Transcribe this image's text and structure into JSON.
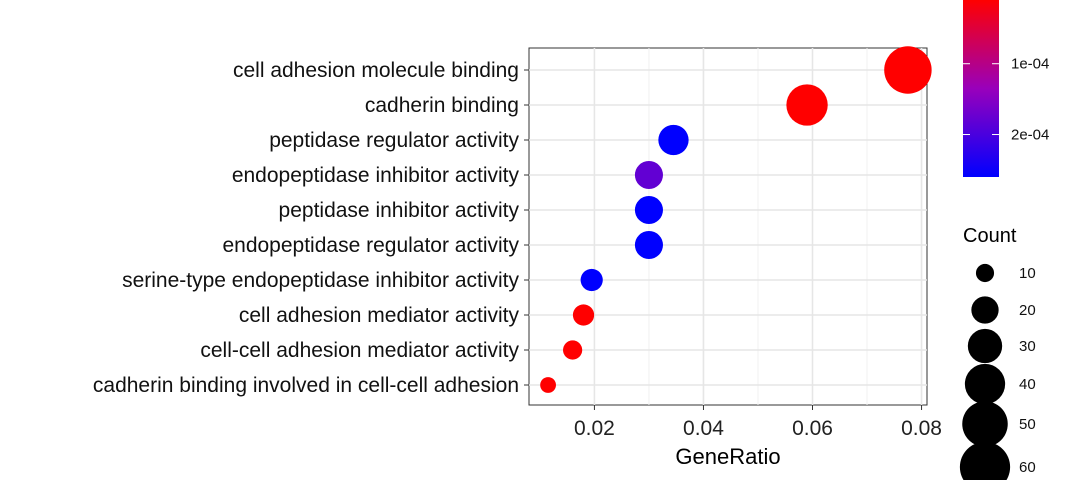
{
  "chart_data": {
    "type": "scatter",
    "title": "",
    "xlabel": "GeneRatio",
    "ylabel": "",
    "xlim": [
      0.008,
      0.081
    ],
    "xticks": [
      0.02,
      0.04,
      0.06,
      0.08
    ],
    "xtick_labels": [
      "0.02",
      "0.04",
      "0.06",
      "0.08"
    ],
    "grid": true,
    "categories": [
      "cell adhesion molecule binding",
      "cadherin binding",
      "peptidase regulator activity",
      "endopeptidase inhibitor activity",
      "peptidase inhibitor activity",
      "endopeptidase regulator activity",
      "serine-type endopeptidase inhibitor activity",
      "cell adhesion mediator activity",
      "cell-cell adhesion mediator activity",
      "cadherin binding involved in cell-cell adhesion"
    ],
    "points": [
      {
        "term": "cell adhesion molecule binding",
        "gene_ratio": 0.0775,
        "count": 54,
        "p_adjust": 1e-05
      },
      {
        "term": "cadherin binding",
        "gene_ratio": 0.059,
        "count": 42,
        "p_adjust": 1e-05
      },
      {
        "term": "peptidase regulator activity",
        "gene_ratio": 0.0345,
        "count": 24,
        "p_adjust": 0.00026
      },
      {
        "term": "endopeptidase inhibitor activity",
        "gene_ratio": 0.03,
        "count": 21,
        "p_adjust": 0.00018
      },
      {
        "term": "peptidase inhibitor activity",
        "gene_ratio": 0.03,
        "count": 21,
        "p_adjust": 0.00026
      },
      {
        "term": "endopeptidase regulator activity",
        "gene_ratio": 0.03,
        "count": 21,
        "p_adjust": 0.00026
      },
      {
        "term": "serine-type endopeptidase inhibitor activity",
        "gene_ratio": 0.0195,
        "count": 14,
        "p_adjust": 0.00026
      },
      {
        "term": "cell adhesion mediator activity",
        "gene_ratio": 0.018,
        "count": 13,
        "p_adjust": 1e-05
      },
      {
        "term": "cell-cell adhesion mediator activity",
        "gene_ratio": 0.016,
        "count": 11,
        "p_adjust": 1e-05
      },
      {
        "term": "cadherin binding involved in cell-cell adhesion",
        "gene_ratio": 0.0115,
        "count": 8,
        "p_adjust": 1e-05
      }
    ],
    "color_legend": {
      "title": "",
      "low_color": "#FF0000",
      "high_color": "#0000FF",
      "range": [
        1e-05,
        0.00026
      ],
      "tick_values": [
        0.0001,
        0.0002
      ],
      "tick_labels": [
        "1e-04",
        "2e-04"
      ]
    },
    "size_legend": {
      "title": "Count",
      "values": [
        10,
        20,
        30,
        40,
        50,
        60
      ],
      "labels": [
        "10",
        "20",
        "30",
        "40",
        "50",
        "60"
      ],
      "color": "#000000"
    }
  }
}
